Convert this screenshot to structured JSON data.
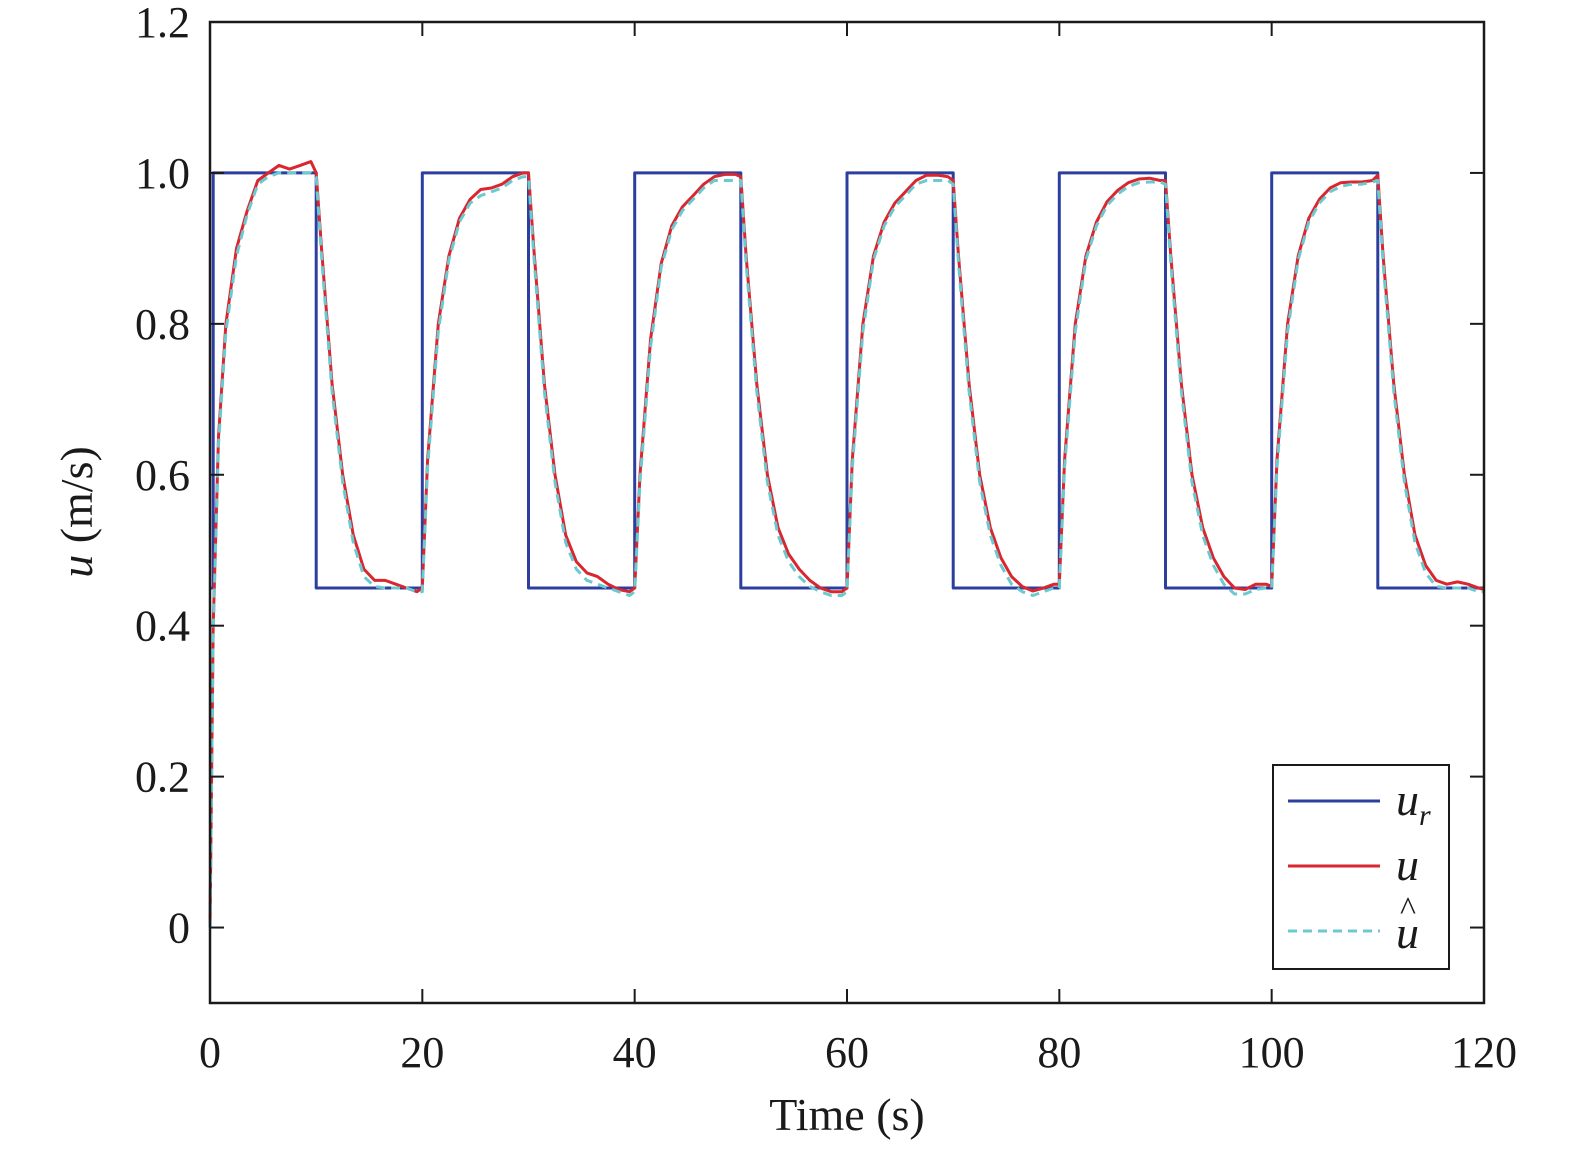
{
  "chart_data": {
    "type": "line",
    "xlabel": "Time (s)",
    "ylabel_var": "u",
    "ylabel_unit": " (m/s)",
    "xlim": [
      0,
      120
    ],
    "ylim": [
      -0.1,
      1.2
    ],
    "xticks": [
      0,
      20,
      40,
      60,
      80,
      100,
      120
    ],
    "xtick_labels": [
      "0",
      "20",
      "40",
      "60",
      "80",
      "100",
      "120"
    ],
    "yticks": [
      0,
      0.2,
      0.4,
      0.6,
      0.8,
      1.0,
      1.2
    ],
    "ytick_labels": [
      "0",
      "0.2",
      "0.4",
      "0.6",
      "0.8",
      "1.0",
      "1.2"
    ],
    "grid": false,
    "legend_position": "bottom-right",
    "series": [
      {
        "name": "u_r",
        "legend_main": "u",
        "legend_sub": "r",
        "color": "#2c3f9e",
        "style": "solid",
        "x": [
          0,
          0.3,
          0.3,
          10,
          10,
          20,
          20,
          30,
          30,
          40,
          40,
          50,
          50,
          60,
          60,
          70,
          70,
          80,
          80,
          90,
          90,
          100,
          100,
          110,
          110,
          120
        ],
        "y": [
          0.45,
          0.45,
          1.0,
          1.0,
          0.45,
          0.45,
          1.0,
          1.0,
          0.45,
          0.45,
          1.0,
          1.0,
          0.45,
          0.45,
          1.0,
          1.0,
          0.45,
          0.45,
          1.0,
          1.0,
          0.45,
          0.45,
          1.0,
          1.0,
          0.45,
          0.45
        ]
      },
      {
        "name": "u",
        "legend_main": "u",
        "color": "#d9262f",
        "style": "solid",
        "x": [
          0,
          0.3,
          0.8,
          1.5,
          2.5,
          3.5,
          4.5,
          5.5,
          6.5,
          7.5,
          8.5,
          9.5,
          10.0,
          10.5,
          11.5,
          12.5,
          13.5,
          14.5,
          15.5,
          16.5,
          17.5,
          18.5,
          19.5,
          20.0,
          20.5,
          21.5,
          22.5,
          23.5,
          24.5,
          25.5,
          26.5,
          27.5,
          28.5,
          29.5,
          30.0,
          30.5,
          31.5,
          32.5,
          33.5,
          34.5,
          35.5,
          36.5,
          37.5,
          38.5,
          39.5,
          40.0,
          40.5,
          41.5,
          42.5,
          43.5,
          44.5,
          45.5,
          46.5,
          47.5,
          48.5,
          49.5,
          50.0,
          50.5,
          51.5,
          52.5,
          53.5,
          54.5,
          55.5,
          56.5,
          57.5,
          58.5,
          59.5,
          60.0,
          60.5,
          61.5,
          62.5,
          63.5,
          64.5,
          65.5,
          66.5,
          67.5,
          68.5,
          69.5,
          70.0,
          70.5,
          71.5,
          72.5,
          73.5,
          74.5,
          75.5,
          76.5,
          77.5,
          78.5,
          79.5,
          80.0,
          80.5,
          81.5,
          82.5,
          83.5,
          84.5,
          85.5,
          86.5,
          87.5,
          88.5,
          89.5,
          90.0,
          90.5,
          91.5,
          92.5,
          93.5,
          94.5,
          95.5,
          96.5,
          97.5,
          98.5,
          99.5,
          100.0,
          100.5,
          101.5,
          102.5,
          103.5,
          104.5,
          105.5,
          106.5,
          107.5,
          108.5,
          109.5,
          110.0,
          110.5,
          111.5,
          112.5,
          113.5,
          114.5,
          115.5,
          116.5,
          117.5,
          118.5,
          119.5,
          120.0
        ],
        "y": [
          0.0,
          0.4,
          0.65,
          0.8,
          0.9,
          0.95,
          0.99,
          1.0,
          1.01,
          1.005,
          1.01,
          1.015,
          1.0,
          0.9,
          0.72,
          0.6,
          0.52,
          0.475,
          0.46,
          0.46,
          0.455,
          0.45,
          0.445,
          0.45,
          0.62,
          0.8,
          0.89,
          0.94,
          0.965,
          0.978,
          0.98,
          0.985,
          0.995,
          1.0,
          1.0,
          0.9,
          0.72,
          0.6,
          0.52,
          0.485,
          0.47,
          0.465,
          0.455,
          0.448,
          0.445,
          0.45,
          0.6,
          0.78,
          0.88,
          0.93,
          0.955,
          0.97,
          0.985,
          0.995,
          0.998,
          0.998,
          0.995,
          0.89,
          0.72,
          0.6,
          0.53,
          0.495,
          0.475,
          0.46,
          0.45,
          0.445,
          0.445,
          0.45,
          0.62,
          0.8,
          0.89,
          0.935,
          0.96,
          0.975,
          0.99,
          0.997,
          0.997,
          0.995,
          0.99,
          0.89,
          0.72,
          0.6,
          0.53,
          0.49,
          0.465,
          0.452,
          0.446,
          0.45,
          0.455,
          0.455,
          0.62,
          0.8,
          0.89,
          0.935,
          0.962,
          0.977,
          0.987,
          0.992,
          0.993,
          0.99,
          0.99,
          0.89,
          0.72,
          0.6,
          0.53,
          0.49,
          0.465,
          0.45,
          0.448,
          0.455,
          0.455,
          0.452,
          0.62,
          0.8,
          0.89,
          0.94,
          0.965,
          0.98,
          0.987,
          0.988,
          0.988,
          0.99,
          0.997,
          0.89,
          0.72,
          0.6,
          0.52,
          0.48,
          0.46,
          0.455,
          0.458,
          0.455,
          0.45,
          0.448
        ]
      },
      {
        "name": "u_hat",
        "legend_main": "u",
        "legend_accent": "^",
        "color": "#6cc9d0",
        "style": "dashed",
        "x": [
          0,
          0.3,
          0.8,
          1.5,
          2.5,
          3.5,
          4.5,
          5.5,
          6.5,
          7.5,
          8.5,
          9.5,
          10.0,
          10.5,
          11.5,
          12.5,
          13.5,
          14.5,
          15.5,
          16.5,
          17.5,
          18.5,
          19.5,
          20.0,
          20.5,
          21.5,
          22.5,
          23.5,
          24.5,
          25.5,
          26.5,
          27.5,
          28.5,
          29.5,
          30.0,
          30.5,
          31.5,
          32.5,
          33.5,
          34.5,
          35.5,
          36.5,
          37.5,
          38.5,
          39.5,
          40.0,
          40.5,
          41.5,
          42.5,
          43.5,
          44.5,
          45.5,
          46.5,
          47.5,
          48.5,
          49.5,
          50.0,
          50.5,
          51.5,
          52.5,
          53.5,
          54.5,
          55.5,
          56.5,
          57.5,
          58.5,
          59.5,
          60.0,
          60.5,
          61.5,
          62.5,
          63.5,
          64.5,
          65.5,
          66.5,
          67.5,
          68.5,
          69.5,
          70.0,
          70.5,
          71.5,
          72.5,
          73.5,
          74.5,
          75.5,
          76.5,
          77.5,
          78.5,
          79.5,
          80.0,
          80.5,
          81.5,
          82.5,
          83.5,
          84.5,
          85.5,
          86.5,
          87.5,
          88.5,
          89.5,
          90.0,
          90.5,
          91.5,
          92.5,
          93.5,
          94.5,
          95.5,
          96.5,
          97.5,
          98.5,
          99.5,
          100.0,
          100.5,
          101.5,
          102.5,
          103.5,
          104.5,
          105.5,
          106.5,
          107.5,
          108.5,
          109.5,
          110.0,
          110.5,
          111.5,
          112.5,
          113.5,
          114.5,
          115.5,
          116.5,
          117.5,
          118.5,
          119.5,
          120.0
        ],
        "y": [
          0.0,
          0.39,
          0.64,
          0.79,
          0.89,
          0.945,
          0.985,
          0.995,
          1.0,
          1.0,
          1.0,
          1.0,
          0.995,
          0.89,
          0.71,
          0.59,
          0.51,
          0.465,
          0.452,
          0.45,
          0.45,
          0.45,
          0.445,
          0.445,
          0.61,
          0.79,
          0.885,
          0.935,
          0.96,
          0.97,
          0.975,
          0.98,
          0.99,
          0.995,
          0.995,
          0.89,
          0.71,
          0.59,
          0.51,
          0.475,
          0.46,
          0.455,
          0.45,
          0.445,
          0.44,
          0.445,
          0.59,
          0.77,
          0.875,
          0.925,
          0.95,
          0.965,
          0.98,
          0.99,
          0.99,
          0.99,
          0.99,
          0.88,
          0.71,
          0.59,
          0.52,
          0.485,
          0.465,
          0.452,
          0.445,
          0.44,
          0.44,
          0.445,
          0.61,
          0.79,
          0.885,
          0.93,
          0.955,
          0.97,
          0.985,
          0.99,
          0.99,
          0.99,
          0.985,
          0.88,
          0.71,
          0.59,
          0.52,
          0.48,
          0.455,
          0.445,
          0.44,
          0.445,
          0.45,
          0.45,
          0.61,
          0.79,
          0.885,
          0.93,
          0.957,
          0.972,
          0.982,
          0.987,
          0.988,
          0.988,
          0.985,
          0.88,
          0.71,
          0.59,
          0.52,
          0.48,
          0.455,
          0.442,
          0.442,
          0.448,
          0.45,
          0.45,
          0.61,
          0.79,
          0.885,
          0.935,
          0.96,
          0.975,
          0.982,
          0.985,
          0.985,
          0.988,
          0.99,
          0.88,
          0.71,
          0.59,
          0.51,
          0.47,
          0.452,
          0.45,
          0.45,
          0.45,
          0.445,
          0.445
        ]
      }
    ]
  }
}
